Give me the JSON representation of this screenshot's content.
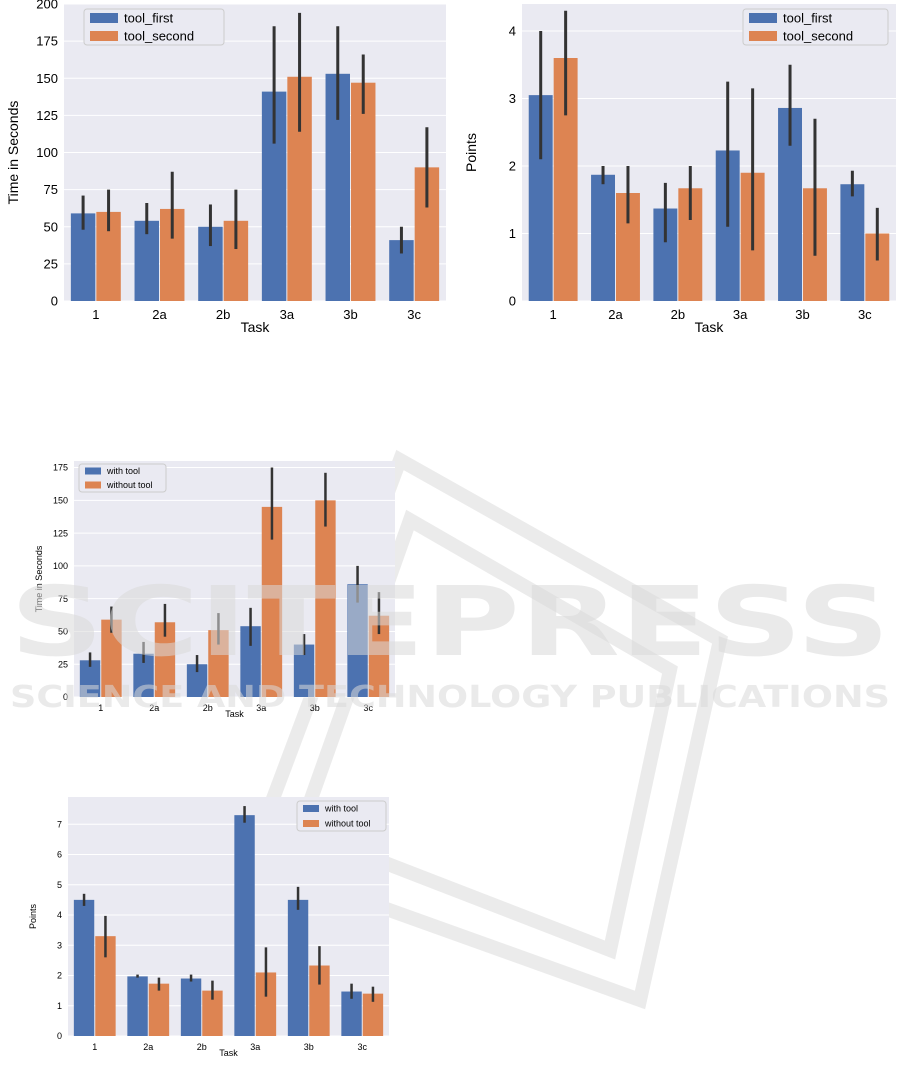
{
  "watermark": {
    "line1": "SCITEPRESS",
    "line2": "SCIENCE AND TECHNOLOGY PUBLICATIONS",
    "color": "#d8d8d8"
  },
  "colors": {
    "blue": "#4c72b0",
    "orange": "#dd8452",
    "panel_bg": "#eaeaf2",
    "grid": "#ffffff",
    "errbar": "#333333",
    "text": "#000000"
  },
  "chart_data": [
    {
      "type": "bar",
      "title": "",
      "xlabel": "Task",
      "ylabel": "Time in Seconds",
      "categories": [
        "1",
        "2a",
        "2b",
        "3a",
        "3b",
        "3c"
      ],
      "ylim": [
        0,
        200
      ],
      "yticks": [
        0,
        25,
        50,
        75,
        100,
        125,
        150,
        175,
        200
      ],
      "grid": true,
      "legend": "top-left",
      "series": [
        {
          "name": "tool_first",
          "color": "#4c72b0",
          "values": [
            59,
            54,
            50,
            141,
            153,
            41
          ],
          "err_low": [
            48,
            45,
            37,
            106,
            122,
            32
          ],
          "err_high": [
            71,
            66,
            65,
            185,
            185,
            50
          ]
        },
        {
          "name": "tool_second",
          "color": "#dd8452",
          "values": [
            60,
            62,
            54,
            151,
            147,
            90
          ],
          "err_low": [
            47,
            42,
            35,
            114,
            126,
            63
          ],
          "err_high": [
            75,
            87,
            75,
            194,
            166,
            117
          ]
        }
      ]
    },
    {
      "type": "bar",
      "title": "",
      "xlabel": "Task",
      "ylabel": "Points",
      "categories": [
        "1",
        "2a",
        "2b",
        "3a",
        "3b",
        "3c"
      ],
      "ylim": [
        0,
        4.4
      ],
      "yticks": [
        0,
        1,
        2,
        3,
        4
      ],
      "grid": true,
      "legend": "top-right",
      "series": [
        {
          "name": "tool_first",
          "color": "#4c72b0",
          "values": [
            3.05,
            1.87,
            1.37,
            2.23,
            2.86,
            1.73
          ],
          "err_low": [
            2.1,
            1.73,
            0.87,
            1.1,
            2.3,
            1.55
          ],
          "err_high": [
            4.0,
            2.0,
            1.75,
            3.25,
            3.5,
            1.93
          ]
        },
        {
          "name": "tool_second",
          "color": "#dd8452",
          "values": [
            3.6,
            1.6,
            1.67,
            1.9,
            1.67,
            1.0
          ],
          "err_low": [
            2.75,
            1.15,
            1.2,
            0.75,
            0.67,
            0.6
          ],
          "err_high": [
            4.3,
            2.0,
            2.0,
            3.15,
            2.7,
            1.38
          ]
        }
      ]
    },
    {
      "type": "bar",
      "title": "",
      "xlabel": "Task",
      "ylabel": "Time in Seconds",
      "categories": [
        "1",
        "2a",
        "2b",
        "3a",
        "3b",
        "3c"
      ],
      "ylim": [
        0,
        180
      ],
      "yticks": [
        0,
        25,
        50,
        75,
        100,
        125,
        150,
        175
      ],
      "grid": true,
      "legend": "top-left",
      "series": [
        {
          "name": "with tool",
          "color": "#4c72b0",
          "values": [
            28,
            33,
            25,
            54,
            40,
            86
          ],
          "err_low": [
            23,
            26,
            19,
            39,
            32,
            72
          ],
          "err_high": [
            34,
            42,
            32,
            68,
            48,
            100
          ]
        },
        {
          "name": "without tool",
          "color": "#dd8452",
          "values": [
            59,
            57,
            51,
            145,
            150,
            62
          ],
          "err_low": [
            49,
            46,
            40,
            120,
            130,
            48
          ],
          "err_high": [
            69,
            71,
            64,
            175,
            171,
            80
          ]
        }
      ]
    },
    {
      "type": "bar",
      "title": "",
      "xlabel": "Task",
      "ylabel": "Points",
      "categories": [
        "1",
        "2a",
        "2b",
        "3a",
        "3b",
        "3c"
      ],
      "ylim": [
        0,
        7.9
      ],
      "yticks": [
        0,
        1,
        2,
        3,
        4,
        5,
        6,
        7
      ],
      "grid": true,
      "legend": "top-right",
      "series": [
        {
          "name": "with tool",
          "color": "#4c72b0",
          "values": [
            4.5,
            1.97,
            1.9,
            7.3,
            4.5,
            1.47
          ],
          "err_low": [
            4.3,
            1.93,
            1.8,
            7.05,
            4.17,
            1.23
          ],
          "err_high": [
            4.7,
            2.03,
            2.03,
            7.6,
            4.93,
            1.73
          ]
        },
        {
          "name": "without tool",
          "color": "#dd8452",
          "values": [
            3.3,
            1.73,
            1.5,
            2.1,
            2.33,
            1.4
          ],
          "err_low": [
            2.6,
            1.5,
            1.2,
            1.3,
            1.7,
            1.13
          ],
          "err_high": [
            3.97,
            1.93,
            1.83,
            2.93,
            2.97,
            1.63
          ]
        }
      ]
    }
  ]
}
